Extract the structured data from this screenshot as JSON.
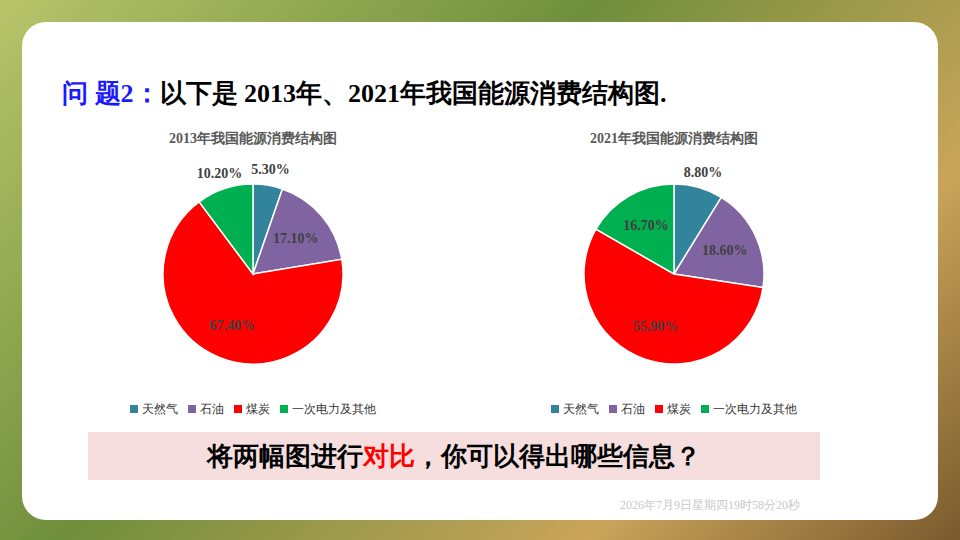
{
  "title": [
    "问 题2：",
    "以下是 2013年、2021年我国能源消费结构图."
  ],
  "chart_data": [
    {
      "type": "pie",
      "title": "2013年我国能源消费结构图",
      "categories": [
        "天然气",
        "石油",
        "煤炭",
        "一次电力及其他"
      ],
      "values": [
        5.3,
        17.1,
        67.4,
        10.2
      ],
      "value_labels": [
        "5.30%",
        "17.10%",
        "67.40%",
        "10.20%"
      ],
      "colors": [
        "#31849b",
        "#8064a2",
        "#ff0000",
        "#00b050"
      ],
      "data_labels": true,
      "legend": "bottom"
    },
    {
      "type": "pie",
      "title": "2021年我国能源消费结构图",
      "categories": [
        "天然气",
        "石油",
        "煤炭",
        "一次电力及其他"
      ],
      "values": [
        8.8,
        18.6,
        55.9,
        16.7
      ],
      "value_labels": [
        "8.80%",
        "18.60%",
        "55.90%",
        "16.70%"
      ],
      "colors": [
        "#31849b",
        "#8064a2",
        "#ff0000",
        "#00b050"
      ],
      "data_labels": true,
      "legend": "bottom"
    }
  ],
  "question": [
    "将两幅图进行",
    "对比",
    "，你可以得出哪些信息？"
  ],
  "timestamp": "2026年7月9日星期四19时58分20秒"
}
